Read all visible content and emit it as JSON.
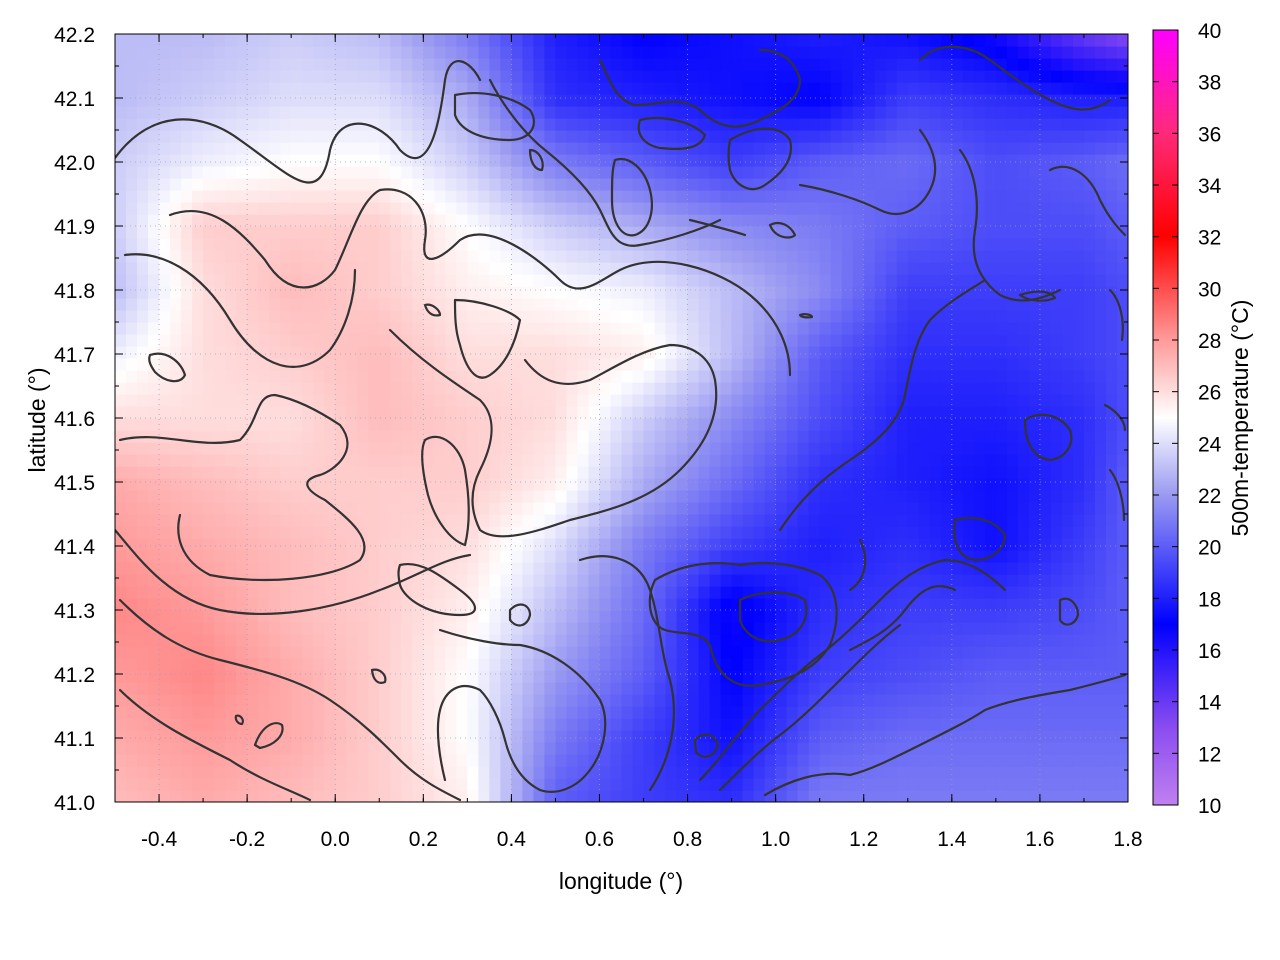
{
  "chart_data": {
    "type": "heatmap",
    "title": "",
    "xlabel": "longitude (°)",
    "ylabel": "latitude (°)",
    "colorbar_label": "500m-temperature (°C)",
    "xlim": [
      -0.5,
      1.8
    ],
    "ylim": [
      41.0,
      42.2
    ],
    "x_ticks": [
      "-0.4",
      "-0.2",
      "0.0",
      "0.2",
      "0.4",
      "0.6",
      "0.8",
      "1.0",
      "1.2",
      "1.4",
      "1.6",
      "1.8"
    ],
    "x_tick_values": [
      -0.4,
      -0.2,
      0.0,
      0.2,
      0.4,
      0.6,
      0.8,
      1.0,
      1.2,
      1.4,
      1.6,
      1.8
    ],
    "y_ticks": [
      "41.0",
      "41.1",
      "41.2",
      "41.3",
      "41.4",
      "41.5",
      "41.6",
      "41.7",
      "41.8",
      "41.9",
      "42.0",
      "42.1",
      "42.2"
    ],
    "y_tick_values": [
      41.0,
      41.1,
      41.2,
      41.3,
      41.4,
      41.5,
      41.6,
      41.7,
      41.8,
      41.9,
      42.0,
      42.1,
      42.2
    ],
    "colorbar_range": [
      10,
      40
    ],
    "colorbar_ticks": [
      "10",
      "12",
      "14",
      "16",
      "18",
      "20",
      "22",
      "24",
      "26",
      "28",
      "30",
      "32",
      "34",
      "36",
      "38",
      "40"
    ],
    "colorbar_tick_values": [
      10,
      12,
      14,
      16,
      18,
      20,
      22,
      24,
      26,
      28,
      30,
      32,
      34,
      36,
      38,
      40
    ],
    "colormap": [
      {
        "value": 10,
        "color": "#c080f0"
      },
      {
        "value": 13,
        "color": "#8a4cf0"
      },
      {
        "value": 17,
        "color": "#0000ff"
      },
      {
        "value": 22,
        "color": "#9a9af2"
      },
      {
        "value": 25,
        "color": "#ffffff"
      },
      {
        "value": 28,
        "color": "#ff9a9a"
      },
      {
        "value": 32,
        "color": "#ff0000"
      },
      {
        "value": 36,
        "color": "#ff2a7a"
      },
      {
        "value": 40,
        "color": "#ff00ff"
      }
    ],
    "grid": true,
    "field_samples": {
      "lon": [
        -0.5,
        -0.3,
        -0.1,
        0.1,
        0.3,
        0.5,
        0.7,
        0.9,
        1.1,
        1.3,
        1.5,
        1.7,
        1.8
      ],
      "lat": [
        41.0,
        41.1,
        41.2,
        41.3,
        41.4,
        41.5,
        41.6,
        41.7,
        41.8,
        41.9,
        42.0,
        42.1,
        42.2
      ],
      "temperature": [
        [
          27.0,
          27.5,
          27.0,
          26.5,
          25.5,
          20.0,
          19.0,
          18.5,
          21.0,
          21.0,
          21.0,
          21.0,
          21.0
        ],
        [
          27.5,
          28.0,
          27.5,
          26.5,
          25.0,
          21.0,
          19.0,
          17.5,
          20.0,
          20.5,
          20.5,
          20.5,
          20.5
        ],
        [
          28.0,
          28.5,
          27.5,
          26.5,
          25.0,
          22.0,
          20.0,
          17.0,
          19.0,
          19.5,
          20.0,
          20.0,
          20.0
        ],
        [
          28.5,
          28.0,
          27.0,
          26.5,
          25.5,
          23.0,
          20.5,
          16.5,
          18.5,
          19.0,
          19.0,
          19.5,
          20.0
        ],
        [
          28.0,
          27.5,
          27.0,
          26.5,
          26.0,
          24.0,
          21.0,
          19.0,
          18.0,
          18.5,
          17.5,
          19.0,
          20.0
        ],
        [
          27.5,
          27.0,
          26.5,
          26.5,
          26.5,
          25.5,
          22.5,
          20.5,
          18.5,
          18.0,
          17.5,
          18.5,
          20.0
        ],
        [
          26.0,
          26.0,
          26.0,
          27.0,
          26.5,
          26.0,
          23.5,
          21.5,
          19.5,
          18.0,
          18.0,
          18.5,
          19.5
        ],
        [
          24.5,
          26.0,
          26.5,
          27.0,
          26.0,
          26.0,
          25.5,
          23.0,
          20.0,
          18.5,
          18.5,
          19.0,
          19.5
        ],
        [
          23.0,
          26.0,
          27.0,
          26.5,
          25.5,
          25.0,
          24.5,
          23.0,
          21.5,
          19.0,
          19.0,
          19.0,
          19.5
        ],
        [
          23.5,
          26.5,
          26.5,
          26.5,
          25.0,
          23.5,
          22.5,
          21.5,
          21.0,
          20.0,
          19.5,
          19.5,
          20.0
        ],
        [
          23.5,
          24.5,
          25.0,
          25.0,
          23.5,
          21.0,
          20.0,
          19.0,
          20.0,
          20.5,
          19.5,
          20.0,
          20.5
        ],
        [
          23.0,
          23.5,
          24.0,
          24.0,
          22.5,
          18.5,
          18.0,
          17.5,
          17.0,
          19.0,
          18.5,
          18.0,
          18.0
        ],
        [
          23.0,
          23.0,
          23.5,
          23.0,
          21.0,
          18.0,
          17.0,
          17.5,
          18.0,
          17.5,
          16.5,
          14.0,
          13.0
        ]
      ]
    }
  }
}
